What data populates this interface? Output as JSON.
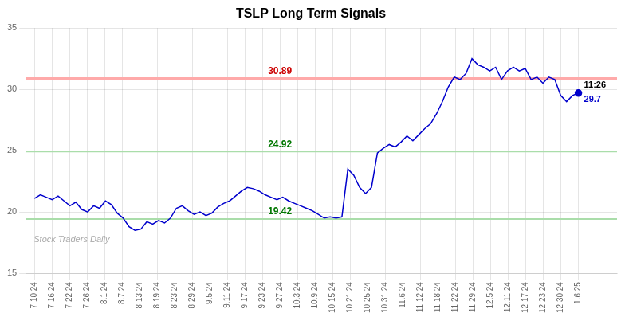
{
  "chart_data": {
    "type": "line",
    "title": "TSLP Long Term Signals",
    "color": "#0000cc",
    "x": [
      0,
      0.337,
      0.6739,
      1.0109,
      1.3478,
      1.6848,
      2.0217,
      2.3587,
      2.6957,
      3.0326,
      3.3696,
      3.7065,
      4.0435,
      4.3804,
      4.7174,
      5.0543,
      5.3913,
      5.7283,
      6.0652,
      6.4022,
      6.7391,
      7.0761,
      7.413,
      7.75,
      8.087,
      8.4239,
      8.7609,
      9.0978,
      9.4348,
      9.7717,
      10.1087,
      10.4457,
      10.7826,
      11.1196,
      11.4565,
      11.7935,
      12.1304,
      12.4674,
      12.8043,
      13.1413,
      13.4783,
      13.8152,
      14.1522,
      14.4891,
      14.8261,
      15.163,
      15.5,
      15.837,
      16.1739,
      16.5109,
      16.8478,
      17.1848,
      17.5217,
      17.8587,
      18.1957,
      18.5326,
      18.8696,
      19.2065,
      19.5435,
      19.8804,
      20.2174,
      20.5543,
      20.8913,
      21.2283,
      21.5652,
      21.9022,
      22.2391,
      22.5761,
      22.913,
      23.25,
      23.587,
      23.9239,
      24.2609,
      24.5978,
      24.9348,
      25.2717,
      25.6087,
      25.9457,
      26.2826,
      26.6196,
      26.9565,
      27.2935,
      27.6304,
      27.9674,
      28.3043,
      28.6413,
      28.9783,
      29.3152,
      29.6522,
      29.9891,
      30.3261,
      30.663,
      31
    ],
    "values": [
      21.1,
      21.4,
      21.2,
      21.0,
      21.3,
      20.9,
      20.5,
      20.8,
      20.2,
      20.0,
      20.5,
      20.3,
      20.9,
      20.6,
      19.9,
      19.5,
      18.8,
      18.5,
      18.6,
      19.2,
      19.0,
      19.3,
      19.1,
      19.5,
      20.3,
      20.5,
      20.1,
      19.8,
      20.0,
      19.7,
      19.9,
      20.4,
      20.7,
      20.9,
      21.3,
      21.7,
      22.0,
      21.9,
      21.7,
      21.4,
      21.2,
      21.0,
      21.2,
      20.9,
      20.7,
      20.5,
      20.3,
      20.1,
      19.8,
      19.5,
      19.6,
      19.5,
      19.6,
      23.5,
      23.0,
      22.0,
      21.5,
      22.0,
      24.8,
      25.2,
      25.5,
      25.3,
      25.7,
      26.2,
      25.8,
      26.3,
      26.8,
      27.2,
      28.0,
      29.0,
      30.2,
      31.0,
      30.8,
      31.3,
      32.5,
      32.0,
      31.8,
      31.5,
      31.8,
      30.8,
      31.5,
      31.8,
      31.5,
      31.7,
      30.8,
      31.0,
      30.5,
      31.0,
      30.8,
      29.5,
      29.0,
      29.5,
      29.7
    ],
    "xlim": [
      -0.5,
      33.2
    ],
    "xticks": [
      {
        "value": 0,
        "label": "7.10.24"
      },
      {
        "value": 1,
        "label": "7.16.24"
      },
      {
        "value": 2,
        "label": "7.22.24"
      },
      {
        "value": 3,
        "label": "7.26.24"
      },
      {
        "value": 4,
        "label": "8.1.24"
      },
      {
        "value": 5,
        "label": "8.7.24"
      },
      {
        "value": 6,
        "label": "8.13.24"
      },
      {
        "value": 7,
        "label": "8.19.24"
      },
      {
        "value": 8,
        "label": "8.23.24"
      },
      {
        "value": 9,
        "label": "8.29.24"
      },
      {
        "value": 10,
        "label": "9.5.24"
      },
      {
        "value": 11,
        "label": "9.11.24"
      },
      {
        "value": 12,
        "label": "9.17.24"
      },
      {
        "value": 13,
        "label": "9.23.24"
      },
      {
        "value": 14,
        "label": "9.27.24"
      },
      {
        "value": 15,
        "label": "10.3.24"
      },
      {
        "value": 16,
        "label": "10.9.24"
      },
      {
        "value": 17,
        "label": "10.15.24"
      },
      {
        "value": 18,
        "label": "10.21.24"
      },
      {
        "value": 19,
        "label": "10.25.24"
      },
      {
        "value": 20,
        "label": "10.31.24"
      },
      {
        "value": 21,
        "label": "11.6.24"
      },
      {
        "value": 22,
        "label": "11.12.24"
      },
      {
        "value": 23,
        "label": "11.18.24"
      },
      {
        "value": 24,
        "label": "11.22.24"
      },
      {
        "value": 25,
        "label": "11.29.24"
      },
      {
        "value": 26,
        "label": "12.5.24"
      },
      {
        "value": 27,
        "label": "12.11.24"
      },
      {
        "value": 28,
        "label": "12.17.24"
      },
      {
        "value": 29,
        "label": "12.23.24"
      },
      {
        "value": 30,
        "label": "12.30.24"
      },
      {
        "value": 31,
        "label": "1.6.25"
      }
    ],
    "ylim": [
      15,
      35
    ],
    "yticks": [
      15,
      20,
      25,
      30,
      35
    ],
    "grid": true,
    "hlines": [
      {
        "value": 30.89,
        "color": "#ffaaaa",
        "label": "30.89",
        "label_color": "#cc0000"
      },
      {
        "value": 24.92,
        "color": "#aaddaa",
        "label": "24.92",
        "label_color": "#007700"
      },
      {
        "value": 19.42,
        "color": "#aaddaa",
        "label": "19.42",
        "label_color": "#007700"
      }
    ],
    "last_point_labels": [
      "11:26",
      "29.7"
    ],
    "watermark": "Stock Traders Daily"
  }
}
